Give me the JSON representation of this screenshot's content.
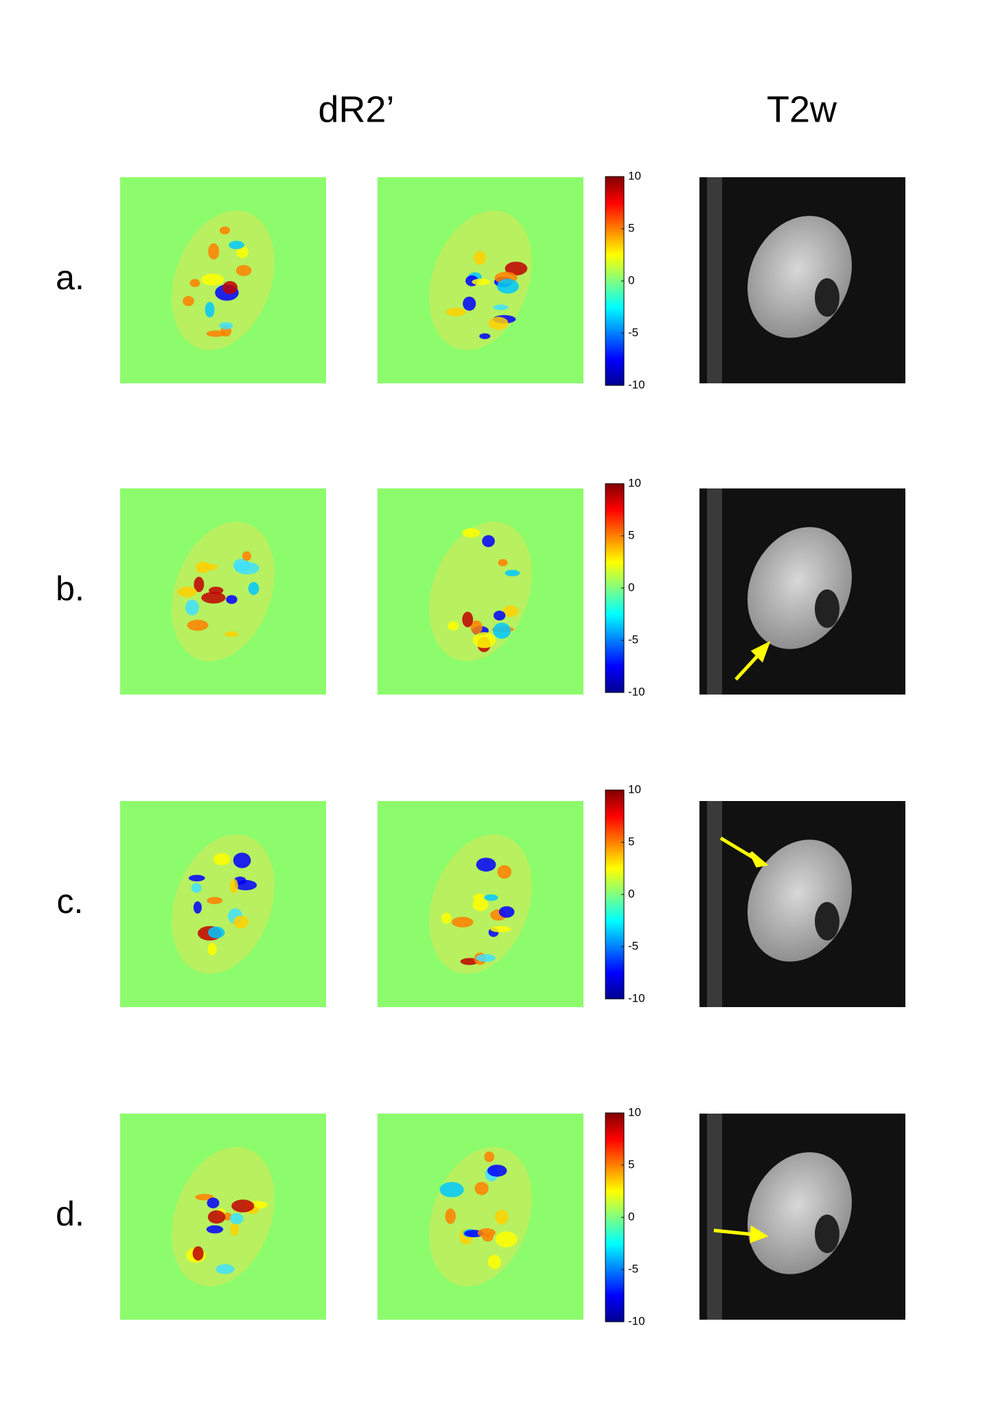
{
  "headers": [
    "dR2’",
    "T2w"
  ],
  "colorbar_range": [
    -10,
    10
  ],
  "rows": [
    {
      "label": "a.",
      "colorbar_ticks": [
        10,
        5,
        0,
        -5,
        -10
      ]
    },
    {
      "label": "b.",
      "colorbar_ticks": [
        10,
        5,
        0,
        -5,
        -10
      ]
    },
    {
      "label": "c.",
      "colorbar_ticks": [
        10,
        5,
        0,
        -5,
        -10
      ]
    },
    {
      "label": "d.",
      "colorbar_ticks": [
        10,
        5,
        0,
        -5,
        -10
      ]
    }
  ]
}
